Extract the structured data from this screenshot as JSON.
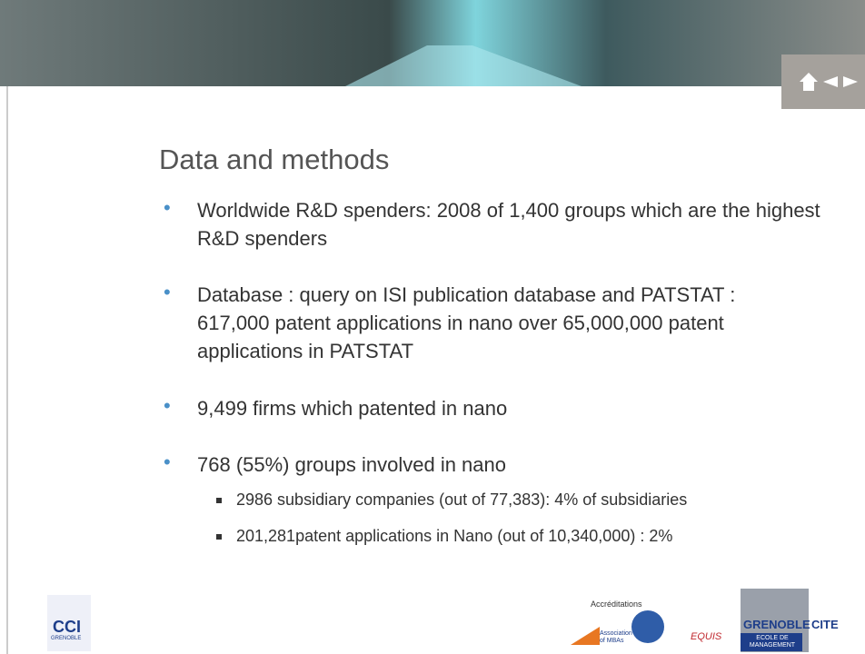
{
  "slide": {
    "title": "Data and methods",
    "bullets": [
      {
        "text": "Worldwide R&D spenders: 2008 of 1,400 groups which are the highest R&D spenders"
      },
      {
        "text": "Database : query on ISI publication database and PATSTAT : 617,000 patent applications in nano over 65,000,000 patent applications in PATSTAT"
      },
      {
        "text": "9,499 firms which patented in nano"
      },
      {
        "text": "768 (55%) groups involved in nano",
        "sub": [
          "2986 subsidiary companies (out of 77,383): 4% of subsidiaries",
          "201,281patent applications in Nano (out of 10,340,000) : 2%"
        ]
      }
    ]
  },
  "footer": {
    "cci": {
      "name": "CCI",
      "city": "GRENOBLE"
    },
    "accreditations": "Accréditations",
    "amba": "Association of MBAs",
    "equis": "EQUIS",
    "school": {
      "name1": "GRENOBLE",
      "name2": "CITE",
      "sub": "ECOLE DE MANAGEMENT"
    }
  }
}
